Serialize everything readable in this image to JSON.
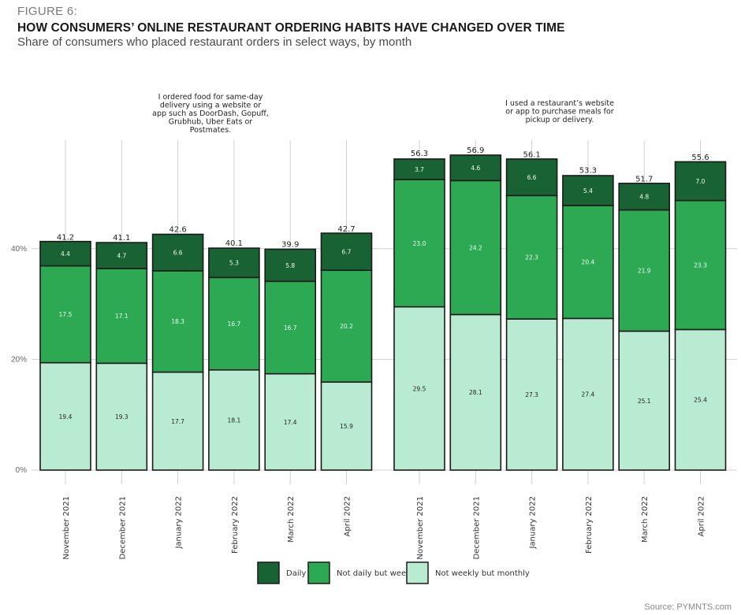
{
  "header": {
    "figure_label": "FIGURE 6:",
    "title": "HOW CONSUMERS’ ONLINE RESTAURANT ORDERING HABITS HAVE CHANGED OVER TIME",
    "subtitle": "Share of consumers who placed restaurant orders in select ways, by month"
  },
  "source": "Source: PYMNTS.com",
  "colors": {
    "daily": "#196233",
    "weekly": "#2da853",
    "monthly": "#b9ebd3",
    "outline": "#1a1a1a",
    "grid": "#d0d0d0"
  },
  "chart_data": [
    {
      "type": "bar",
      "stacked": true,
      "title": "I ordered food for same-day delivery using a website or app such as DoorDash, Gopuff, Grubhub, Uber Eats or Postmates.",
      "title_lines": [
        "I ordered food for same-day",
        "delivery using a website or",
        "app such as DoorDash, Gopuff,",
        "Grubhub, Uber Eats or",
        "Postmates."
      ],
      "categories": [
        "November 2021",
        "December 2021",
        "January 2022",
        "February 2022",
        "March 2022",
        "April 2022"
      ],
      "series": [
        {
          "name": "Not weekly but monthly",
          "values": [
            19.4,
            19.3,
            17.7,
            18.1,
            17.4,
            15.9
          ]
        },
        {
          "name": "Not daily but weekly",
          "values": [
            17.5,
            17.1,
            18.3,
            16.7,
            16.7,
            20.2
          ]
        },
        {
          "name": "Daily",
          "values": [
            4.4,
            4.7,
            6.6,
            5.3,
            5.8,
            6.7
          ]
        }
      ],
      "totals": [
        41.2,
        41.1,
        42.6,
        40.1,
        39.9,
        42.7
      ],
      "xlabel": "",
      "ylabel": "",
      "yticks": [
        "0%",
        "20%",
        "40%"
      ],
      "ytick_values": [
        0,
        20,
        40
      ],
      "ylim": [
        0,
        60
      ],
      "grid": true
    },
    {
      "type": "bar",
      "stacked": true,
      "title": "I used a restaurant’s website or app to purchase meals for pickup or delivery.",
      "title_lines": [
        "I used a restaurant’s website",
        "or app to purchase meals for",
        "pickup or delivery."
      ],
      "categories": [
        "November 2021",
        "December 2021",
        "January 2022",
        "February 2022",
        "March 2022",
        "April 2022"
      ],
      "series": [
        {
          "name": "Not weekly but monthly",
          "values": [
            29.5,
            28.1,
            27.3,
            27.4,
            25.1,
            25.4
          ]
        },
        {
          "name": "Not daily but weekly",
          "values": [
            23.0,
            24.2,
            22.3,
            20.4,
            21.9,
            23.3
          ]
        },
        {
          "name": "Daily",
          "values": [
            3.7,
            4.6,
            6.6,
            5.4,
            4.8,
            7.0
          ]
        }
      ],
      "totals": [
        56.3,
        56.9,
        56.1,
        53.3,
        51.7,
        55.6
      ],
      "xlabel": "",
      "ylabel": "",
      "ylim": [
        0,
        60
      ],
      "grid": true
    }
  ],
  "legend": {
    "placement": "bottom-center",
    "items": [
      {
        "label": "Daily",
        "color_key": "daily"
      },
      {
        "label": "Not daily but weekly",
        "color_key": "weekly"
      },
      {
        "label": "Not weekly but monthly",
        "color_key": "monthly"
      }
    ]
  }
}
